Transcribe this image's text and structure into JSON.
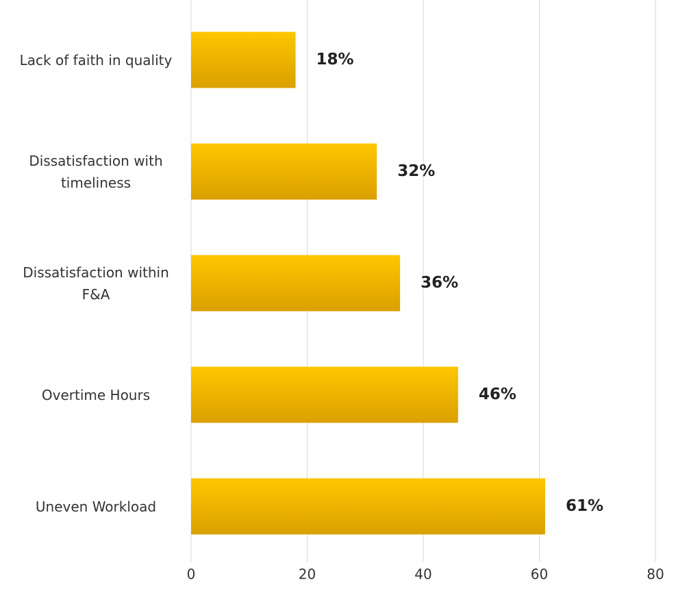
{
  "chart_data": {
    "type": "bar",
    "orientation": "horizontal",
    "categories": [
      "Lack of faith in quality",
      "Dissatisfaction with timeliness",
      "Dissatisfaction within F&A",
      "Overtime Hours",
      "Uneven Workload"
    ],
    "values": [
      18,
      32,
      36,
      46,
      61
    ],
    "value_labels": [
      "18%",
      "32%",
      "36%",
      "46%",
      "61%"
    ],
    "color": "#ffc000",
    "xlim": [
      0,
      80
    ],
    "xticks": [
      0,
      20,
      40,
      60,
      80
    ],
    "grid": true
  }
}
